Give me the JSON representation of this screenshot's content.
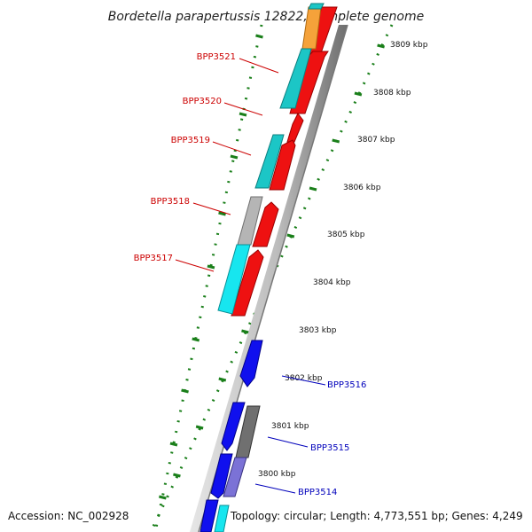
{
  "title": "Bordetella parapertussis 12822, complete genome",
  "accession_text": "Accession: NC_002928",
  "topology_text": "Topology: circular; Length: 4,773,551 bp; Genes: 4,249",
  "colors": {
    "backbone_light": "#d9d9d9",
    "backbone_dark": "#808080",
    "tick": "#1a7f1a",
    "forward_label": "#cc0000",
    "reverse_label": "#0000bb"
  },
  "kbp_labels": [
    "3809 kbp",
    "3808 kbp",
    "3807 kbp",
    "3806 kbp",
    "3805 kbp",
    "3804 kbp",
    "3803 kbp",
    "3802 kbp",
    "3801 kbp",
    "3800 kbp"
  ],
  "gene_labels": [
    {
      "text": "BPP3521",
      "strand": "forward"
    },
    {
      "text": "BPP3520",
      "strand": "forward"
    },
    {
      "text": "BPP3519",
      "strand": "forward"
    },
    {
      "text": "BPP3518",
      "strand": "forward"
    },
    {
      "text": "BPP3517",
      "strand": "forward"
    },
    {
      "text": "BPP3516",
      "strand": "reverse"
    },
    {
      "text": "BPP3515",
      "strand": "reverse"
    },
    {
      "text": "BPP3514",
      "strand": "reverse"
    }
  ]
}
